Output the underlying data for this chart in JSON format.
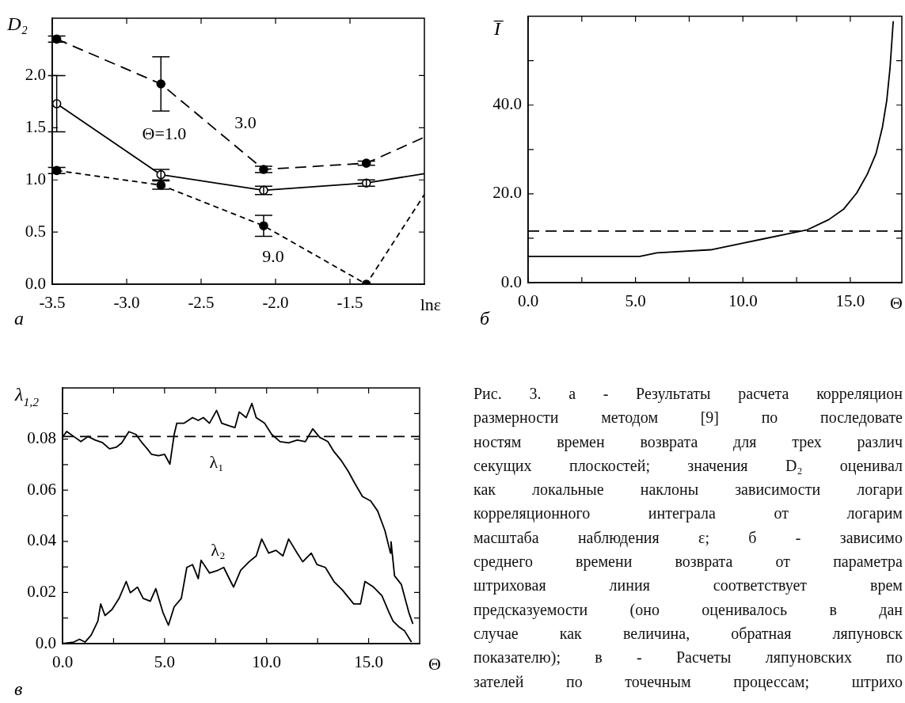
{
  "chart_data": [
    {
      "type": "line",
      "xlabel": "lnε",
      "ylabel": "D₂",
      "annotations": [
        "а"
      ],
      "marker": "circle",
      "xlim": [
        -3.5,
        -1.0
      ],
      "ylim": [
        0,
        2.55
      ],
      "xticks": [
        {
          "value": -3.5,
          "label": "-3.5"
        },
        {
          "value": -3.0,
          "label": "-3.0"
        },
        {
          "value": -2.5,
          "label": "-2.5"
        },
        {
          "value": -2.0,
          "label": "-2.0"
        },
        {
          "value": -1.5,
          "label": "-1.5"
        }
      ],
      "yticks": [
        {
          "value": 0,
          "label": "0.0"
        },
        {
          "value": 0.5,
          "label": "0.5"
        },
        {
          "value": 1.0,
          "label": "1.0"
        },
        {
          "value": 1.5,
          "label": "1.5"
        },
        {
          "value": 2.0,
          "label": "2.0"
        }
      ],
      "x": [
        -3.47,
        -2.77,
        -2.08,
        -1.39,
        -1.0
      ],
      "series": [
        {
          "name": "Θ=1.0",
          "color": "#000000",
          "line_style": "solid",
          "values": [
            1.73,
            1.05,
            0.9,
            0.97,
            1.06
          ],
          "errors": [
            0.27,
            0.05,
            0.04,
            0.03,
            null
          ]
        },
        {
          "name": "3.0",
          "color": "#000000",
          "line_style": "dashed",
          "values": [
            2.35,
            1.92,
            1.1,
            1.16,
            1.41
          ],
          "errors": [
            0.03,
            0.26,
            0.03,
            0.02,
            null
          ]
        },
        {
          "name": "9.0",
          "color": "#000000",
          "line_style": "dashed",
          "values": [
            1.09,
            0.95,
            0.56,
            0.0,
            0.86
          ],
          "errors": [
            0.03,
            0.04,
            0.1,
            0,
            null
          ]
        }
      ]
    },
    {
      "type": "line",
      "xlabel": "Θ",
      "ylabel": "I̅",
      "annotations": [
        "б"
      ],
      "xlim": [
        0,
        17.4
      ],
      "ylim": [
        0,
        60
      ],
      "xticks": [
        {
          "value": 0,
          "label": "0.0"
        },
        {
          "value": 2.5,
          "label": null
        },
        {
          "value": 5,
          "label": "5.0"
        },
        {
          "value": 7.5,
          "label": null
        },
        {
          "value": 10,
          "label": "10.0"
        },
        {
          "value": 12.5,
          "label": null
        },
        {
          "value": 15,
          "label": "15.0"
        }
      ],
      "yticks": [
        {
          "value": 0,
          "label": "0.0"
        },
        {
          "value": 10,
          "label": null
        },
        {
          "value": 20,
          "label": "20.0"
        },
        {
          "value": 30,
          "label": null
        },
        {
          "value": 40,
          "label": "40.0"
        },
        {
          "value": 50,
          "label": null
        }
      ],
      "ref_lines": [
        {
          "axis": "y",
          "value": 11.6,
          "line_style": "dashed"
        }
      ],
      "series": [
        {
          "color": "#000000",
          "x": [
            0,
            5.2,
            6,
            8.5,
            10,
            11,
            12,
            13,
            14,
            14.7,
            15.3,
            15.8,
            16.2,
            16.5,
            16.7,
            16.85,
            17.0
          ],
          "values": [
            5.9,
            5.9,
            6.7,
            7.4,
            8.9,
            9.9,
            10.9,
            11.9,
            14.2,
            16.6,
            20.2,
            24.5,
            29.1,
            35.1,
            41.1,
            48.3,
            58.9
          ]
        }
      ]
    },
    {
      "type": "line",
      "xlabel": "Θ",
      "ylabel": "λ$_{1,2}$",
      "annotations": [
        "в"
      ],
      "xlim": [
        0,
        17.5
      ],
      "ylim": [
        0,
        0.1
      ],
      "xticks": [
        {
          "value": 0,
          "label": "0.0"
        },
        {
          "value": 2.5,
          "label": null
        },
        {
          "value": 5,
          "label": "5.0"
        },
        {
          "value": 7.5,
          "label": null
        },
        {
          "value": 10,
          "label": "10.0"
        },
        {
          "value": 12.5,
          "label": null
        },
        {
          "value": 15,
          "label": "15.0"
        }
      ],
      "yticks": [
        {
          "value": 0,
          "label": "0.0"
        },
        {
          "value": 0.01,
          "label": null
        },
        0.02,
        {
          "value": 0.03,
          "label": null
        },
        0.04,
        {
          "value": 0.05,
          "label": null
        },
        0.06,
        {
          "value": 0.07,
          "label": null
        },
        0.08,
        {
          "value": 0.09,
          "label": null
        }
      ],
      "ref_lines": [
        {
          "axis": "y",
          "value": 0.081,
          "line_style": "dashed"
        }
      ],
      "series": [
        {
          "name": "λ₁",
          "color": "#000000",
          "x": [
            0,
            0.2,
            0.55,
            0.9,
            1.25,
            1.6,
            1.94,
            2.3,
            2.63,
            2.9,
            3.25,
            3.6,
            3.9,
            4.15,
            4.36,
            4.7,
            5.0,
            5.26,
            5.47,
            5.6,
            5.96,
            6.37,
            6.65,
            6.9,
            7.2,
            7.55,
            7.8,
            8.2,
            8.45,
            8.66,
            9.0,
            9.28,
            9.49,
            9.9,
            10.25,
            10.66,
            11.08,
            11.5,
            11.9,
            12.26,
            12.6,
            13.0,
            13.3,
            13.64,
            14.0,
            14.3,
            14.7,
            15.1,
            15.44,
            15.8,
            16.07,
            16.1,
            16.27,
            16.6,
            16.97,
            17.17
          ],
          "values": [
            0.0807,
            0.083,
            0.081,
            0.079,
            0.081,
            0.0796,
            0.0787,
            0.0762,
            0.0768,
            0.0785,
            0.0829,
            0.0818,
            0.0785,
            0.0762,
            0.074,
            0.0735,
            0.074,
            0.0702,
            0.0818,
            0.0862,
            0.0862,
            0.0884,
            0.0873,
            0.0884,
            0.0862,
            0.0912,
            0.0862,
            0.0851,
            0.0845,
            0.0906,
            0.0884,
            0.0939,
            0.0884,
            0.0862,
            0.0818,
            0.079,
            0.0785,
            0.0796,
            0.079,
            0.084,
            0.0807,
            0.079,
            0.0751,
            0.0718,
            0.0674,
            0.063,
            0.0575,
            0.0558,
            0.0519,
            0.0442,
            0.0354,
            0.0398,
            0.0265,
            0.0232,
            0.0122,
            0.0077
          ]
        },
        {
          "name": "λ₂",
          "color": "#000000",
          "x": [
            0,
            0.55,
            0.83,
            1.1,
            1.4,
            1.73,
            1.87,
            2.08,
            2.42,
            2.77,
            3.12,
            3.32,
            3.67,
            3.95,
            4.3,
            4.57,
            4.92,
            5.19,
            5.47,
            5.82,
            6.09,
            6.37,
            6.65,
            6.79,
            7.2,
            7.62,
            7.9,
            8.24,
            8.38,
            8.73,
            9.14,
            9.49,
            9.76,
            10.1,
            10.46,
            10.8,
            11.08,
            11.5,
            11.77,
            12.19,
            12.47,
            12.88,
            13.3,
            13.71,
            14.27,
            14.6,
            14.82,
            15.24,
            15.65,
            16.0,
            16.2,
            16.48,
            16.76,
            17.1
          ],
          "values": [
            0,
            0.0006,
            0.0017,
            0.0006,
            0.0033,
            0.0088,
            0.0155,
            0.011,
            0.0133,
            0.0177,
            0.0243,
            0.0199,
            0.0221,
            0.0177,
            0.0166,
            0.0215,
            0.0122,
            0.0072,
            0.0144,
            0.0177,
            0.0298,
            0.0309,
            0.0254,
            0.0326,
            0.0276,
            0.0287,
            0.0298,
            0.0243,
            0.0221,
            0.0287,
            0.032,
            0.0343,
            0.0409,
            0.0354,
            0.0365,
            0.0343,
            0.0409,
            0.0354,
            0.032,
            0.0354,
            0.0309,
            0.0298,
            0.0243,
            0.021,
            0.0155,
            0.0155,
            0.0243,
            0.0221,
            0.0188,
            0.0122,
            0.0088,
            0.0066,
            0.005,
            0.0006
          ]
        }
      ]
    },
    {
      "type": "other",
      "annotations": [
        "Рис. 3. а - Результаты расчета корреляцион",
        "размерности методом [9] по последовате",
        "ностям времен возврата для трех различ",
        "секущих плоскостей; значения D₂ оценивал",
        "как локальные наклоны зависимости логари",
        "корреляционного интеграла от логарим",
        "масштаба наблюдения ε; б - зависимо",
        "среднего времени возврата от параметра",
        "штриховая линия соответствует врем",
        "предсказуемости (оно оценивалось в дан",
        "случае как величина, обратная ляпуновск",
        "показателю); в - Расчеты ляпуновских по",
        "зателей по точечным процессам; штрихо"
      ]
    }
  ]
}
